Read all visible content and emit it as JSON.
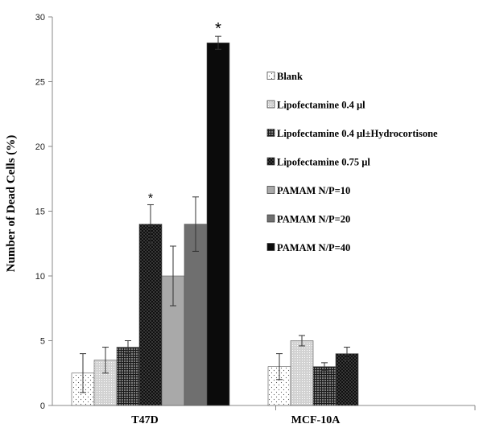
{
  "chart_data": {
    "type": "bar",
    "title": "",
    "xlabel": "",
    "ylabel": "Number of Dead Cells (%)",
    "ylim": [
      0,
      30
    ],
    "yticks": [
      0,
      5,
      10,
      15,
      20,
      25,
      30
    ],
    "grid": false,
    "legend_position": "right",
    "categories": [
      "T47D",
      "MCF-10A"
    ],
    "series": [
      {
        "name": "Blank",
        "pattern": "dots-sparse",
        "values": [
          2.5,
          3.0
        ],
        "errors": [
          1.5,
          1.0
        ]
      },
      {
        "name": "Lipofectamine 0.4 µl",
        "pattern": "light-grey",
        "values": [
          3.5,
          5.0
        ],
        "errors": [
          1.0,
          0.4
        ]
      },
      {
        "name": "Lipofectamine 0.4 µl±Hydrocortisone",
        "pattern": "grid-dark",
        "values": [
          4.5,
          3.0
        ],
        "errors": [
          0.5,
          0.3
        ]
      },
      {
        "name": "Lipofectamine 0.75 µl",
        "pattern": "dots-dense-black",
        "values": [
          14.0,
          4.0
        ],
        "errors": [
          1.5,
          0.5
        ]
      },
      {
        "name": "PAMAM N/P=10",
        "pattern": "solid-light-grey",
        "values": [
          10.0,
          null
        ],
        "errors": [
          2.3,
          null
        ]
      },
      {
        "name": "PAMAM N/P=20",
        "pattern": "solid-mid-grey",
        "values": [
          14.0,
          null
        ],
        "errors": [
          2.1,
          null
        ]
      },
      {
        "name": "PAMAM N/P=40",
        "pattern": "solid-black",
        "values": [
          28.0,
          null
        ],
        "errors": [
          0.5,
          null
        ]
      }
    ],
    "annotations": [
      {
        "text": "*",
        "category": "T47D",
        "series": "Lipofectamine 0.75 µl"
      },
      {
        "text": "*",
        "category": "T47D",
        "series": "PAMAM N/P=40"
      }
    ]
  }
}
